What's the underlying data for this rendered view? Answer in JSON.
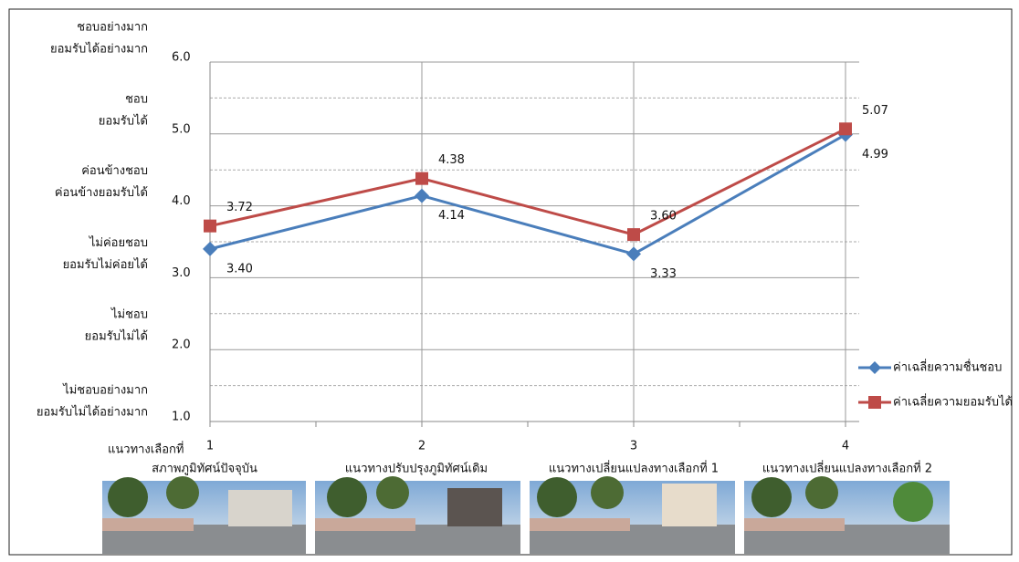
{
  "chart_data": {
    "type": "line",
    "x": [
      1,
      2,
      3,
      4
    ],
    "xlim": [
      1,
      4
    ],
    "xticks": [
      1,
      2,
      3,
      4
    ],
    "xlabel": "แนวทางเลือกที่",
    "categories": [
      "สภาพภูมิทัศน์ปัจจุบัน",
      "แนวทางปรับปรุงภูมิทัศน์เดิม",
      "แนวทางเปลี่ยนแปลงทางเลือกที่ 1",
      "แนวทางเปลี่ยนแปลงทางเลือกที่ 2"
    ],
    "ylim": [
      1,
      6
    ],
    "yticks": [
      {
        "value": 1,
        "label": "1.0"
      },
      {
        "value": 2,
        "label": "2.0"
      },
      {
        "value": 3,
        "label": "3.0"
      },
      {
        "value": 4,
        "label": "4.0"
      },
      {
        "value": 5,
        "label": "5.0"
      },
      {
        "value": 6,
        "label": "6.0"
      }
    ],
    "minor_yticks": [
      1.5,
      2.5,
      3.5,
      4.5,
      5.5
    ],
    "y_level_labels": [
      [
        "ไม่ชอบอย่างมาก",
        "ยอมรับไม่ได้อย่างมาก"
      ],
      [
        "ไม่ชอบ",
        "ยอมรับไม่ได้"
      ],
      [
        "ไม่ค่อยชอบ",
        "ยอมรับไม่ค่อยได้"
      ],
      [
        "ค่อนข้างชอบ",
        "ค่อนข้างยอมรับได้"
      ],
      [
        "ชอบ",
        "ยอมรับได้"
      ],
      [
        "ชอบอย่างมาก",
        "ยอมรับได้อย่างมาก"
      ]
    ],
    "grid": true,
    "legend": "right",
    "series": [
      {
        "name": "ค่าเฉลี่ยความชื่นชอบ",
        "color": "#4a7ebb",
        "marker": "diamond",
        "values": [
          3.4,
          4.14,
          3.33,
          4.99
        ],
        "value_labels": [
          "3.40",
          "4.14",
          "3.33",
          "4.99"
        ]
      },
      {
        "name": "ค่าเฉลี่ยความยอมรับได้",
        "color": "#be4b48",
        "marker": "square",
        "values": [
          3.72,
          4.38,
          3.6,
          5.07
        ],
        "value_labels": [
          "3.72",
          "4.38",
          "3.60",
          "5.07"
        ]
      }
    ]
  }
}
